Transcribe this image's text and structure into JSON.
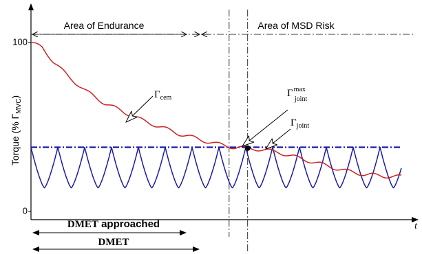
{
  "chart_data": {
    "type": "line",
    "xlabel": "t",
    "ylabel": {
      "main": "Torque (% Γ",
      "sub": "MVC",
      "close": ")"
    },
    "yticks": [
      {
        "value": 0,
        "label": "0"
      },
      {
        "value": 100,
        "label": "100"
      }
    ],
    "ylim": [
      0,
      100
    ],
    "regions": [
      {
        "label": "Area of Endurance"
      },
      {
        "label": "Area of MSD Risk"
      }
    ],
    "annotations": {
      "cem": {
        "main": "Γ",
        "sub": "cem"
      },
      "joint_max": {
        "main": "Γ",
        "sup": "max",
        "sub": "joint"
      },
      "joint": {
        "main": "Γ",
        "sub": "joint"
      },
      "dmet_approached": {
        "bold": "DMET",
        "rest": " approached"
      },
      "dmet": "DMET"
    },
    "series": [
      {
        "name": "Γcem",
        "color": "#cc2222",
        "style": "solid",
        "x": [
          0,
          3,
          6,
          10,
          15,
          20,
          25,
          30,
          35,
          40,
          45,
          50,
          55,
          58,
          61,
          64,
          67,
          70,
          75,
          80,
          85,
          90,
          95,
          100
        ],
        "y": [
          100,
          97,
          89,
          80,
          71,
          64,
          59,
          54,
          50,
          46,
          43,
          40,
          38,
          37.5,
          37,
          36,
          35,
          33,
          30,
          27,
          24,
          22,
          21,
          20.5
        ]
      },
      {
        "name": "Γjoint max",
        "color": "#1a1aaa",
        "style": "dash-dot",
        "x": [
          0,
          100
        ],
        "y": [
          38,
          38
        ]
      },
      {
        "name": "Γjoint",
        "color": "#1a1aaa",
        "style": "solid",
        "pattern": "sawtooth",
        "period": 7.25,
        "y_min": 14,
        "y_max": 38
      }
    ],
    "markers": [
      {
        "x": 58.5,
        "y": 37.5
      }
    ],
    "vertical_lines": [
      {
        "x": 53.5
      },
      {
        "x": 58.5
      }
    ]
  }
}
